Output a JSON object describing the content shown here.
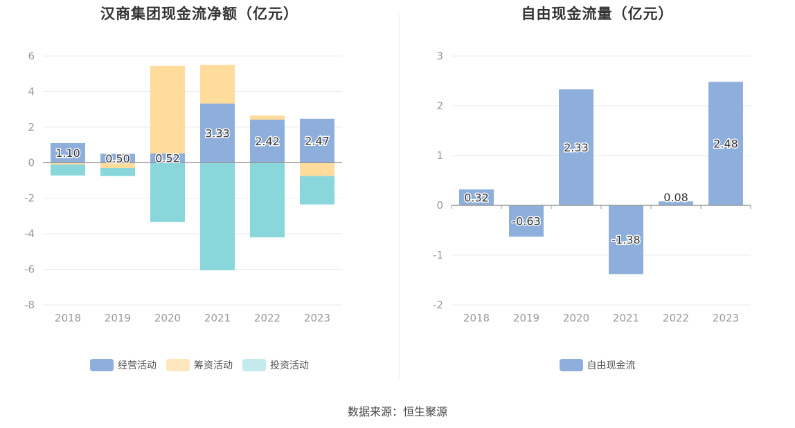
{
  "colors": {
    "operating": "#8eaedb",
    "financing": "#ffdb9c",
    "investing": "#89d7db",
    "legend_investing": "#c3eaec",
    "legend_financing": "#ffe6bd",
    "grid": "#e6e9f2",
    "axis": "#999999",
    "tick_text": "#999999"
  },
  "chart_data": [
    {
      "type": "bar",
      "stacked": true,
      "title": "汉商集团现金流净额（亿元）",
      "categories": [
        "2018",
        "2019",
        "2020",
        "2021",
        "2022",
        "2023"
      ],
      "ylim": [
        -8,
        6
      ],
      "yticks": [
        -8,
        -6,
        -4,
        -2,
        0,
        2,
        4,
        6
      ],
      "series": [
        {
          "name": "经营活动",
          "key": "operating",
          "values": [
            1.1,
            0.5,
            0.52,
            3.33,
            2.42,
            2.47
          ],
          "labels": [
            "1.10",
            "0.50",
            "0.52",
            "3.33",
            "2.42",
            "2.47"
          ]
        },
        {
          "name": "筹资活动",
          "key": "financing",
          "values": [
            -0.1,
            -0.3,
            4.93,
            2.17,
            0.23,
            -0.75
          ]
        },
        {
          "name": "投资活动",
          "key": "investing",
          "values": [
            -0.62,
            -0.45,
            -3.33,
            -6.05,
            -4.2,
            -1.6
          ]
        }
      ],
      "legend": [
        {
          "name": "经营活动",
          "key": "operating"
        },
        {
          "name": "筹资活动",
          "key": "legend_financing"
        },
        {
          "name": "投资活动",
          "key": "legend_investing"
        }
      ]
    },
    {
      "type": "bar",
      "title": "自由现金流量（亿元）",
      "categories": [
        "2018",
        "2019",
        "2020",
        "2021",
        "2022",
        "2023"
      ],
      "ylim": [
        -2,
        3
      ],
      "yticks": [
        -2,
        -1,
        0,
        1,
        2,
        3
      ],
      "series": [
        {
          "name": "自由现金流",
          "key": "operating",
          "values": [
            0.32,
            -0.63,
            2.33,
            -1.38,
            0.08,
            2.48
          ],
          "labels": [
            "0.32",
            "-0.63",
            "2.33",
            "-1.38",
            "0.08",
            "2.48"
          ]
        }
      ],
      "legend": [
        {
          "name": "自由现金流",
          "key": "operating"
        }
      ]
    }
  ],
  "source": "数据来源：恒生聚源"
}
